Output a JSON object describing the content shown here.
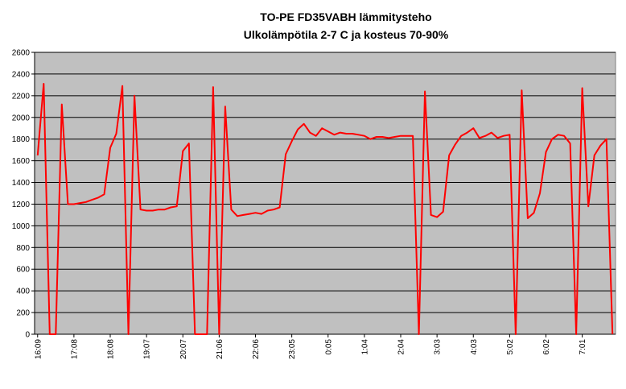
{
  "chart_data": {
    "type": "line",
    "title": "TO-PE FD35VABH lämmitysteho",
    "subtitle": "Ulkolämpötila 2-7 C ja kosteus 70-90%",
    "categories": [
      "16:09",
      null,
      null,
      null,
      null,
      null,
      "17:08",
      null,
      null,
      null,
      null,
      null,
      "18:08",
      null,
      null,
      null,
      null,
      null,
      "19:07",
      null,
      null,
      null,
      null,
      null,
      "20:07",
      null,
      null,
      null,
      null,
      null,
      "21:06",
      null,
      null,
      null,
      null,
      null,
      "22:06",
      null,
      null,
      null,
      null,
      null,
      "23:05",
      null,
      null,
      null,
      null,
      null,
      "0:05",
      null,
      null,
      null,
      null,
      null,
      "1:04",
      null,
      null,
      null,
      null,
      null,
      "2:04",
      null,
      null,
      null,
      null,
      null,
      "3:03",
      null,
      null,
      null,
      null,
      null,
      "4:03",
      null,
      null,
      null,
      null,
      null,
      "5:02",
      null,
      null,
      null,
      null,
      null,
      "6:02",
      null,
      null,
      null,
      null,
      null,
      "7:01",
      null,
      null,
      null,
      null,
      null
    ],
    "values": [
      1650,
      2310,
      0,
      0,
      2120,
      1200,
      1200,
      1210,
      1220,
      1240,
      1260,
      1290,
      1720,
      1850,
      2290,
      0,
      2200,
      1150,
      1140,
      1140,
      1150,
      1150,
      1170,
      1180,
      1690,
      1760,
      0,
      0,
      0,
      2280,
      0,
      2100,
      1150,
      1090,
      1100,
      1110,
      1120,
      1110,
      1140,
      1150,
      1170,
      1660,
      1780,
      1890,
      1940,
      1860,
      1830,
      1900,
      1870,
      1840,
      1860,
      1850,
      1850,
      1840,
      1830,
      1800,
      1820,
      1820,
      1810,
      1820,
      1830,
      1830,
      1830,
      0,
      2240,
      1100,
      1080,
      1130,
      1650,
      1750,
      1830,
      1860,
      1900,
      1810,
      1830,
      1860,
      1810,
      1830,
      1840,
      0,
      2250,
      1070,
      1120,
      1300,
      1680,
      1800,
      1840,
      1830,
      1760,
      0,
      2270,
      1180,
      1650,
      1740,
      1800,
      0
    ],
    "color": "#ff0000",
    "ylim": [
      0,
      2600
    ],
    "yticks": [
      0,
      200,
      400,
      600,
      800,
      1000,
      1200,
      1400,
      1600,
      1800,
      2000,
      2200,
      2400,
      2600
    ],
    "grid": true
  }
}
